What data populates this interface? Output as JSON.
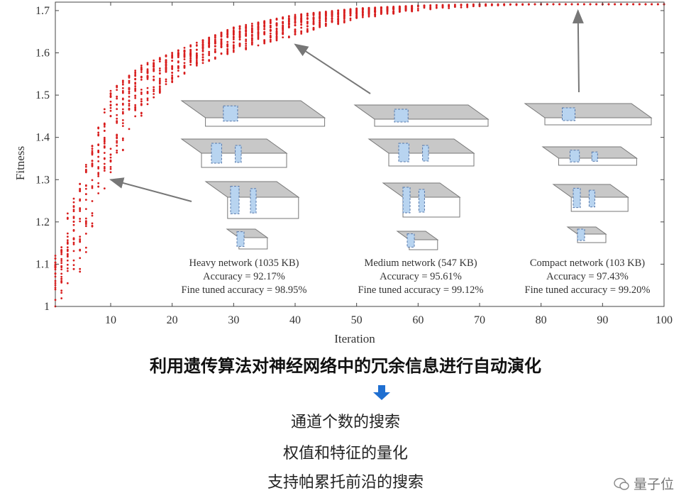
{
  "chart_data": {
    "type": "scatter",
    "xlabel": "Iteration",
    "ylabel": "Fitness",
    "xlim": [
      1,
      100
    ],
    "ylim": [
      1,
      1.72
    ],
    "x_ticks": [
      10,
      20,
      30,
      40,
      50,
      60,
      70,
      80,
      90,
      100
    ],
    "y_ticks": [
      1,
      1.1,
      1.2,
      1.3,
      1.4,
      1.5,
      1.6,
      1.7
    ],
    "grid": false,
    "series_color": "#d81e1e",
    "envelope": {
      "x": [
        1,
        2,
        3,
        5,
        7,
        10,
        15,
        20,
        25,
        30,
        40,
        50,
        60,
        70,
        80,
        90,
        100
      ],
      "min": [
        1.0,
        1.0,
        1.03,
        1.08,
        1.17,
        1.31,
        1.45,
        1.53,
        1.57,
        1.6,
        1.64,
        1.68,
        1.7,
        1.71,
        1.715,
        1.715,
        1.715
      ],
      "max": [
        1.12,
        1.14,
        1.22,
        1.29,
        1.38,
        1.51,
        1.57,
        1.6,
        1.63,
        1.66,
        1.69,
        1.705,
        1.712,
        1.715,
        1.715,
        1.715,
        1.715
      ]
    },
    "annotations": [
      {
        "name": "Heavy network (1035 KB)",
        "accuracy": "Accuracy = 92.17%",
        "fine_tuned": "Fine tuned accuracy = 98.95%",
        "points_to": [
          10,
          1.3
        ]
      },
      {
        "name": "Medium network (547 KB)",
        "accuracy": "Accuracy = 95.61%",
        "fine_tuned": "Fine tuned accuracy = 99.12%",
        "points_to": [
          40,
          1.62
        ]
      },
      {
        "name": "Compact network (103 KB)",
        "accuracy": "Accuracy = 97.43%",
        "fine_tuned": "Fine tuned accuracy = 99.20%",
        "points_to": [
          86,
          1.7
        ]
      }
    ]
  },
  "text": {
    "headline": "利用遗传算法对神经网络中的冗余信息进行自动演化",
    "bullet1": "通道个数的搜索",
    "bullet2": "权值和特征的量化",
    "bullet3": "支持帕累托前沿的搜索",
    "watermark": "量子位"
  },
  "colors": {
    "arrow_blue": "#1f6fd1",
    "box_face": "#c8c8c8",
    "box_front": "#ffffff",
    "cube_blue": "#b8d4f0"
  }
}
